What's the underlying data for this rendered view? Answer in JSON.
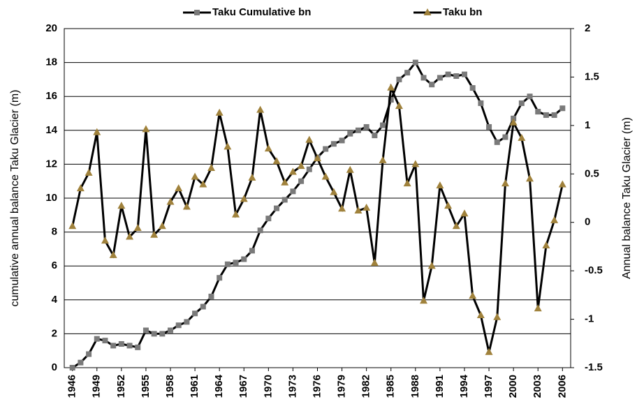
{
  "chart_data": {
    "type": "line",
    "y_label": "cumulative annual balance Taku Glacier  (m)",
    "y2_label": "Annual balance Taku Glacier  (m)",
    "x": [
      1946,
      1947,
      1948,
      1949,
      1950,
      1951,
      1952,
      1953,
      1954,
      1955,
      1956,
      1957,
      1958,
      1959,
      1960,
      1961,
      1962,
      1963,
      1964,
      1965,
      1966,
      1967,
      1968,
      1969,
      1970,
      1971,
      1972,
      1973,
      1974,
      1975,
      1976,
      1977,
      1978,
      1979,
      1980,
      1981,
      1982,
      1983,
      1984,
      1985,
      1986,
      1987,
      1988,
      1989,
      1990,
      1991,
      1992,
      1993,
      1994,
      1995,
      1996,
      1997,
      1998,
      1999,
      2000,
      2001,
      2002,
      2003,
      2004,
      2005,
      2006
    ],
    "series": [
      {
        "name": "Taku Cumulative bn",
        "color": "#7a7a7a",
        "line_color": "#000000",
        "marker": "square",
        "values": [
          0,
          0.3,
          0.8,
          1.7,
          1.6,
          1.3,
          1.4,
          1.3,
          1.2,
          2.2,
          2.0,
          2.0,
          2.2,
          2.5,
          2.7,
          3.2,
          3.6,
          4.2,
          5.3,
          6.1,
          6.2,
          6.4,
          6.9,
          8.1,
          8.8,
          9.4,
          9.9,
          10.4,
          11.0,
          11.7,
          12.4,
          12.9,
          13.2,
          13.4,
          13.8,
          14.0,
          14.2,
          13.7,
          14.3,
          15.8,
          17.0,
          17.4,
          18.0,
          17.1,
          16.7,
          17.1,
          17.3,
          17.2,
          17.3,
          16.5,
          15.6,
          14.2,
          13.3,
          13.6,
          14.7,
          15.6,
          16.0,
          15.1,
          14.9,
          14.9,
          15.3
        ]
      },
      {
        "name": "Taku bn",
        "color": "#a0823c",
        "line_color": "#000000",
        "marker": "triangle",
        "axis": "y2",
        "values": [
          -0.04,
          0.35,
          0.51,
          0.93,
          -0.19,
          -0.34,
          0.17,
          -0.15,
          -0.06,
          0.96,
          -0.13,
          -0.04,
          0.21,
          0.35,
          0.16,
          0.47,
          0.39,
          0.56,
          1.13,
          0.78,
          0.08,
          0.24,
          0.46,
          1.16,
          0.76,
          0.63,
          0.41,
          0.52,
          0.58,
          0.85,
          0.66,
          0.47,
          0.31,
          0.14,
          0.54,
          0.12,
          0.15,
          -0.42,
          0.64,
          1.39,
          1.2,
          0.4,
          0.6,
          -0.81,
          -0.45,
          0.38,
          0.17,
          -0.04,
          0.09,
          -0.76,
          -0.96,
          -1.34,
          -0.98,
          0.4,
          1.03,
          0.87,
          0.45,
          -0.89,
          -0.24,
          0.02,
          0.39
        ]
      }
    ],
    "xlim": [
      1945,
      2007
    ],
    "xticks": [
      1946,
      1949,
      1952,
      1955,
      1958,
      1961,
      1964,
      1967,
      1970,
      1973,
      1976,
      1979,
      1982,
      1985,
      1988,
      1991,
      1994,
      1997,
      2000,
      2003,
      2006
    ],
    "ylim": [
      0,
      20
    ],
    "yticks": [
      0,
      2,
      4,
      6,
      8,
      10,
      12,
      14,
      16,
      18,
      20
    ],
    "y2lim": [
      -1.5,
      2
    ],
    "y2ticks": [
      -1.5,
      -1,
      -0.5,
      0,
      0.5,
      1,
      1.5,
      2
    ],
    "grid": true,
    "legend": "top"
  }
}
